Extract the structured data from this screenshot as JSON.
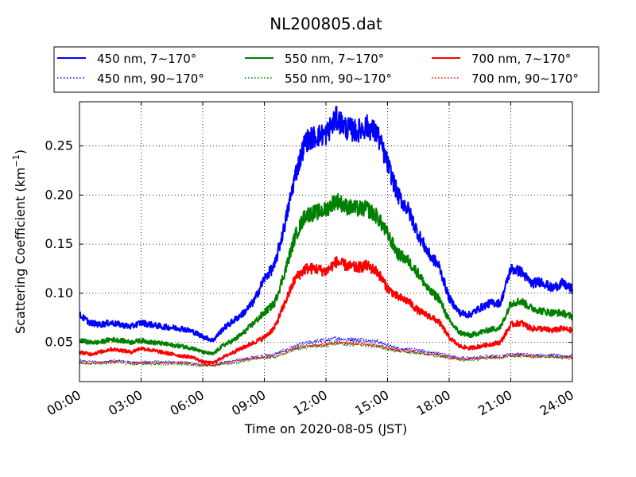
{
  "chart_data": {
    "type": "line",
    "title": "NL200805.dat",
    "xlabel": "Time on 2020-08-05 (JST)",
    "ylabel": "Scattering Coefficient (km",
    "ylabel_sup": "−1",
    "ylabel_close": ")",
    "xlim": [
      "00:00",
      "24:00"
    ],
    "ylim": [
      0.01,
      0.295
    ],
    "grid": true,
    "legend_placement": "top, above plot",
    "x_ticks": [
      "00:00",
      "03:00",
      "06:00",
      "09:00",
      "12:00",
      "15:00",
      "18:00",
      "21:00",
      "24:00"
    ],
    "y_ticks": [
      "0.05",
      "0.10",
      "0.15",
      "0.20",
      "0.25"
    ],
    "x": [
      "00:00",
      "00:30",
      "01:00",
      "01:30",
      "02:00",
      "02:30",
      "03:00",
      "03:30",
      "04:00",
      "04:30",
      "05:00",
      "05:30",
      "06:00",
      "06:30",
      "07:00",
      "07:30",
      "08:00",
      "08:30",
      "09:00",
      "09:30",
      "10:00",
      "10:30",
      "11:00",
      "11:30",
      "12:00",
      "12:30",
      "13:00",
      "13:30",
      "14:00",
      "14:30",
      "15:00",
      "15:30",
      "16:00",
      "16:30",
      "17:00",
      "17:30",
      "18:00",
      "18:30",
      "19:00",
      "19:30",
      "20:00",
      "20:30",
      "21:00",
      "21:30",
      "22:00",
      "22:30",
      "23:00",
      "23:30",
      "24:00"
    ],
    "series": [
      {
        "name": "450 nm, 7∼170°",
        "color": "#0000ff",
        "style": "solid",
        "values": [
          0.078,
          0.07,
          0.068,
          0.07,
          0.068,
          0.066,
          0.07,
          0.068,
          0.066,
          0.065,
          0.064,
          0.061,
          0.056,
          0.052,
          0.064,
          0.072,
          0.08,
          0.092,
          0.115,
          0.128,
          0.17,
          0.22,
          0.255,
          0.26,
          0.262,
          0.278,
          0.268,
          0.265,
          0.27,
          0.262,
          0.232,
          0.2,
          0.185,
          0.16,
          0.14,
          0.128,
          0.095,
          0.08,
          0.078,
          0.085,
          0.09,
          0.09,
          0.125,
          0.122,
          0.11,
          0.112,
          0.105,
          0.11,
          0.104
        ]
      },
      {
        "name": "550 nm, 7∼170°",
        "color": "#008000",
        "style": "solid",
        "values": [
          0.052,
          0.05,
          0.05,
          0.053,
          0.052,
          0.05,
          0.052,
          0.05,
          0.049,
          0.047,
          0.046,
          0.044,
          0.04,
          0.038,
          0.047,
          0.052,
          0.06,
          0.07,
          0.08,
          0.09,
          0.122,
          0.158,
          0.18,
          0.182,
          0.185,
          0.195,
          0.188,
          0.186,
          0.186,
          0.178,
          0.16,
          0.14,
          0.133,
          0.12,
          0.103,
          0.095,
          0.072,
          0.06,
          0.057,
          0.06,
          0.063,
          0.065,
          0.09,
          0.092,
          0.085,
          0.082,
          0.08,
          0.08,
          0.076
        ]
      },
      {
        "name": "700 nm, 7∼170°",
        "color": "#ff0000",
        "style": "solid",
        "values": [
          0.04,
          0.038,
          0.04,
          0.043,
          0.042,
          0.04,
          0.044,
          0.042,
          0.04,
          0.038,
          0.036,
          0.035,
          0.03,
          0.029,
          0.035,
          0.04,
          0.045,
          0.05,
          0.055,
          0.065,
          0.09,
          0.115,
          0.125,
          0.125,
          0.122,
          0.132,
          0.128,
          0.126,
          0.128,
          0.122,
          0.105,
          0.096,
          0.092,
          0.082,
          0.077,
          0.071,
          0.055,
          0.046,
          0.044,
          0.046,
          0.048,
          0.05,
          0.068,
          0.07,
          0.064,
          0.064,
          0.062,
          0.064,
          0.062
        ]
      },
      {
        "name": "450 nm, 90∼170°",
        "color": "#0000ff",
        "style": "dotted",
        "values": [
          0.031,
          0.03,
          0.03,
          0.031,
          0.031,
          0.03,
          0.03,
          0.03,
          0.03,
          0.03,
          0.03,
          0.029,
          0.027,
          0.027,
          0.03,
          0.031,
          0.033,
          0.035,
          0.036,
          0.038,
          0.042,
          0.046,
          0.049,
          0.051,
          0.052,
          0.054,
          0.053,
          0.053,
          0.052,
          0.051,
          0.047,
          0.044,
          0.043,
          0.042,
          0.04,
          0.039,
          0.036,
          0.034,
          0.034,
          0.035,
          0.036,
          0.036,
          0.038,
          0.038,
          0.037,
          0.037,
          0.037,
          0.036,
          0.036
        ]
      },
      {
        "name": "550 nm, 90∼170°",
        "color": "#008000",
        "style": "dotted",
        "values": [
          0.029,
          0.028,
          0.028,
          0.029,
          0.029,
          0.028,
          0.028,
          0.028,
          0.028,
          0.028,
          0.028,
          0.027,
          0.026,
          0.026,
          0.028,
          0.029,
          0.031,
          0.033,
          0.034,
          0.035,
          0.039,
          0.043,
          0.045,
          0.046,
          0.047,
          0.049,
          0.048,
          0.048,
          0.047,
          0.046,
          0.043,
          0.041,
          0.04,
          0.039,
          0.037,
          0.036,
          0.034,
          0.032,
          0.032,
          0.033,
          0.034,
          0.034,
          0.036,
          0.036,
          0.035,
          0.035,
          0.035,
          0.034,
          0.034
        ]
      },
      {
        "name": "700 nm, 90∼170°",
        "color": "#ff0000",
        "style": "dotted",
        "values": [
          0.03,
          0.029,
          0.029,
          0.03,
          0.03,
          0.029,
          0.029,
          0.029,
          0.029,
          0.029,
          0.029,
          0.028,
          0.027,
          0.027,
          0.029,
          0.03,
          0.032,
          0.034,
          0.035,
          0.036,
          0.04,
          0.044,
          0.046,
          0.047,
          0.048,
          0.05,
          0.049,
          0.049,
          0.048,
          0.047,
          0.044,
          0.042,
          0.041,
          0.04,
          0.038,
          0.037,
          0.035,
          0.033,
          0.033,
          0.034,
          0.035,
          0.035,
          0.037,
          0.037,
          0.036,
          0.036,
          0.036,
          0.035,
          0.035
        ]
      }
    ],
    "legend_order": [
      0,
      1,
      2,
      3,
      4,
      5
    ]
  }
}
